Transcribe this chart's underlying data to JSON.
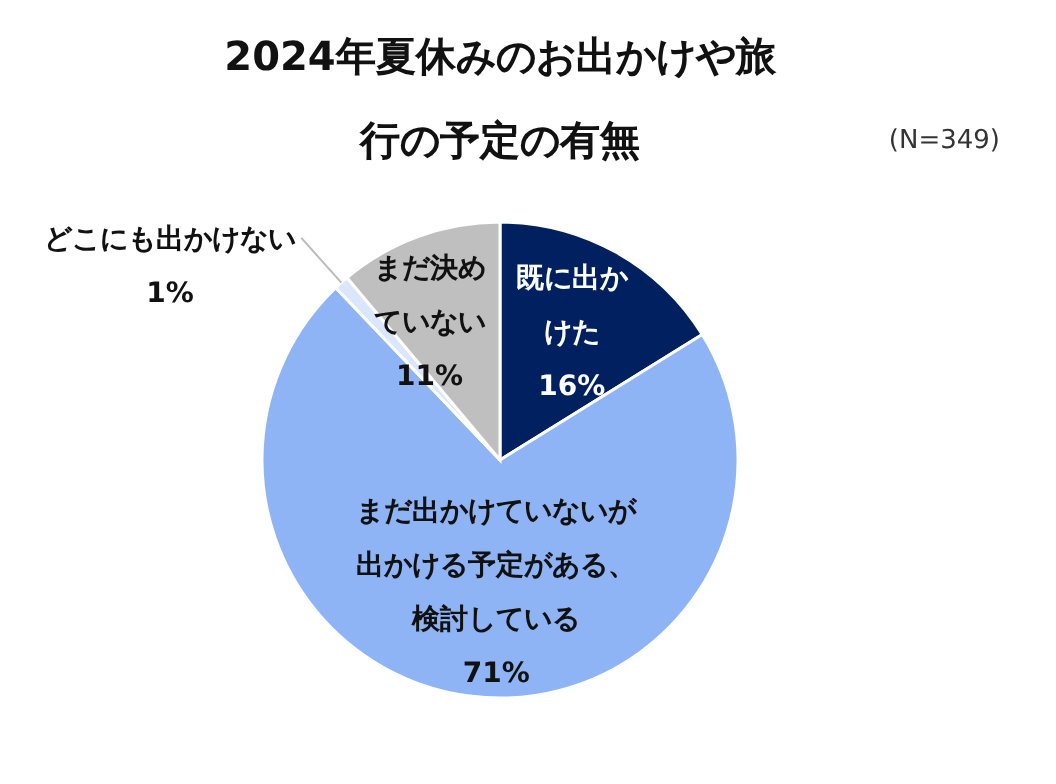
{
  "chart_data": {
    "type": "pie",
    "title": "2024年夏休みのお出かけや旅行の予定の有無",
    "annotations": [
      "(N=349)"
    ],
    "categories": [
      "既に出かけた",
      "まだ出かけていないが出かける予定がある、検討している",
      "どこにも出かけない",
      "まだ決めていない"
    ],
    "values": [
      16,
      71,
      1,
      11
    ],
    "value_labels": [
      "16%",
      "71%",
      "1%",
      "11%"
    ],
    "colors": [
      "#002060",
      "#8fb4f5",
      "#dae6fb",
      "#bfbfbf"
    ]
  }
}
